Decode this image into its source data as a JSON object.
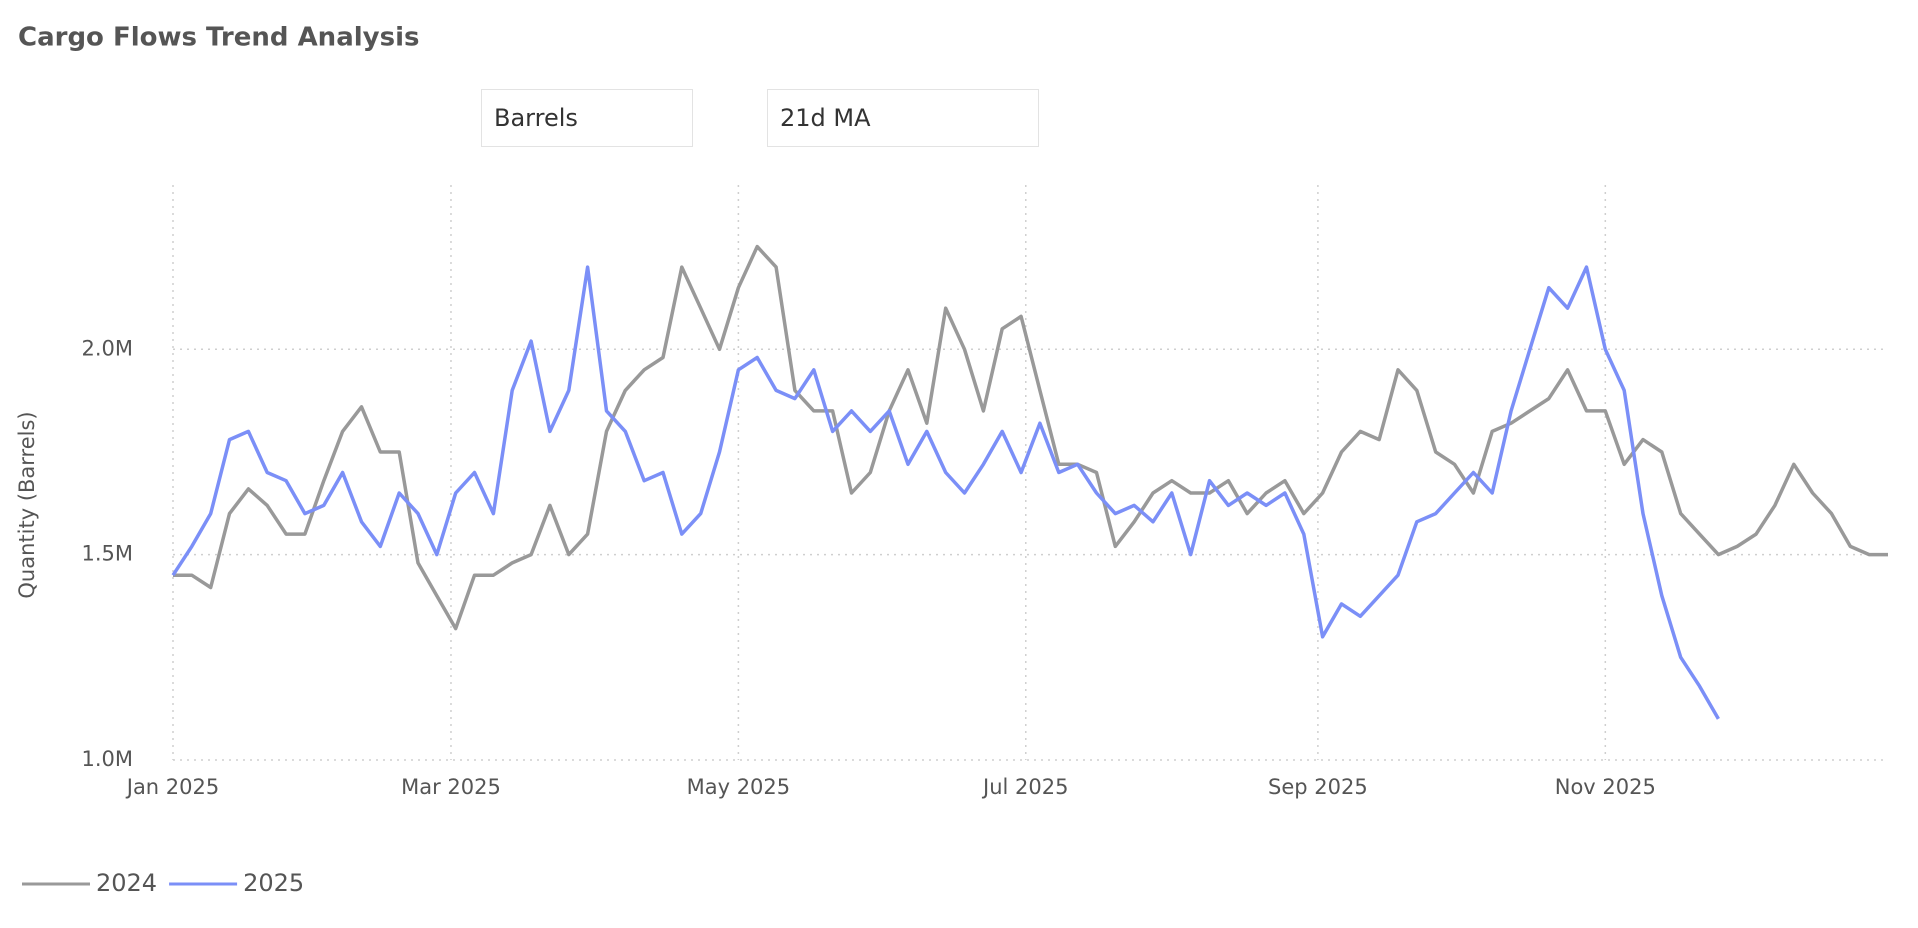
{
  "filters": {
    "unit": "Barrels",
    "window": "21d MA"
  },
  "chart_data": {
    "type": "line",
    "title": "Cargo Flows Trend Analysis",
    "y_label": "Quantity (Barrels)",
    "x": [
      0,
      4,
      8,
      12,
      16,
      20,
      24,
      28,
      32,
      36,
      40,
      44,
      48,
      52,
      56,
      60,
      64,
      68,
      72,
      76,
      80,
      84,
      88,
      92,
      96,
      100,
      104,
      108,
      112,
      116,
      120,
      124,
      128,
      132,
      136,
      140,
      144,
      148,
      152,
      156,
      160,
      164,
      168,
      172,
      176,
      180,
      184,
      188,
      192,
      196,
      200,
      204,
      208,
      212,
      216,
      220,
      224,
      228,
      232,
      236,
      240,
      244,
      248,
      252,
      256,
      260,
      264,
      268,
      272,
      276,
      280,
      284,
      288,
      292,
      296,
      300,
      304,
      308,
      312,
      316,
      320,
      324,
      328,
      332,
      336,
      340,
      344,
      348,
      352,
      356,
      360,
      364
    ],
    "xlim": [
      0,
      364
    ],
    "xticks": [
      {
        "value": 0,
        "label": "Jan 2025"
      },
      {
        "value": 59,
        "label": "Mar 2025"
      },
      {
        "value": 120,
        "label": "May 2025"
      },
      {
        "value": 181,
        "label": "Jul 2025"
      },
      {
        "value": 243,
        "label": "Sep 2025"
      },
      {
        "value": 304,
        "label": "Nov 2025"
      }
    ],
    "ylim": [
      1000000,
      2400000
    ],
    "yticks": [
      {
        "value": 1000000,
        "label": "1.0M"
      },
      {
        "value": 1500000,
        "label": "1.5M"
      },
      {
        "value": 2000000,
        "label": "2.0M"
      }
    ],
    "grid": true,
    "legend": "bottom-left",
    "series": [
      {
        "name": "2024",
        "color": "#999999",
        "values": [
          1450000,
          1450000,
          1420000,
          1600000,
          1660000,
          1620000,
          1550000,
          1550000,
          1680000,
          1800000,
          1860000,
          1750000,
          1750000,
          1480000,
          1400000,
          1320000,
          1450000,
          1450000,
          1480000,
          1500000,
          1620000,
          1500000,
          1550000,
          1800000,
          1900000,
          1950000,
          1980000,
          2200000,
          2100000,
          2000000,
          2150000,
          2250000,
          2200000,
          1900000,
          1850000,
          1850000,
          1650000,
          1700000,
          1850000,
          1950000,
          1820000,
          2100000,
          2000000,
          1850000,
          2050000,
          2080000,
          1900000,
          1720000,
          1720000,
          1700000,
          1520000,
          1580000,
          1650000,
          1680000,
          1650000,
          1650000,
          1680000,
          1600000,
          1650000,
          1680000,
          1600000,
          1650000,
          1750000,
          1800000,
          1780000,
          1950000,
          1900000,
          1750000,
          1720000,
          1650000,
          1800000,
          1820000,
          1850000,
          1880000,
          1950000,
          1850000,
          1850000,
          1720000,
          1780000,
          1750000,
          1600000,
          1550000,
          1500000,
          1520000,
          1550000,
          1620000,
          1720000,
          1650000,
          1600000,
          1520000,
          1500000,
          1500000
        ]
      },
      {
        "name": "2025",
        "color": "#7b8ff7",
        "values": [
          1450000,
          1520000,
          1600000,
          1780000,
          1800000,
          1700000,
          1680000,
          1600000,
          1620000,
          1700000,
          1580000,
          1520000,
          1650000,
          1600000,
          1500000,
          1650000,
          1700000,
          1600000,
          1900000,
          2020000,
          1800000,
          1900000,
          2200000,
          1850000,
          1800000,
          1680000,
          1700000,
          1550000,
          1600000,
          1750000,
          1950000,
          1980000,
          1900000,
          1880000,
          1950000,
          1800000,
          1850000,
          1800000,
          1850000,
          1720000,
          1800000,
          1700000,
          1650000,
          1720000,
          1800000,
          1700000,
          1820000,
          1700000,
          1720000,
          1650000,
          1600000,
          1620000,
          1580000,
          1650000,
          1500000,
          1680000,
          1620000,
          1650000,
          1620000,
          1650000,
          1550000,
          1300000,
          1380000,
          1350000,
          1400000,
          1450000,
          1580000,
          1600000,
          1650000,
          1700000,
          1650000,
          1850000,
          2000000,
          2150000,
          2100000,
          2200000,
          2000000,
          1900000,
          1600000,
          1400000,
          1250000,
          1180000,
          1100000,
          null,
          null,
          null,
          null,
          null,
          null,
          null,
          null,
          null
        ]
      }
    ]
  }
}
